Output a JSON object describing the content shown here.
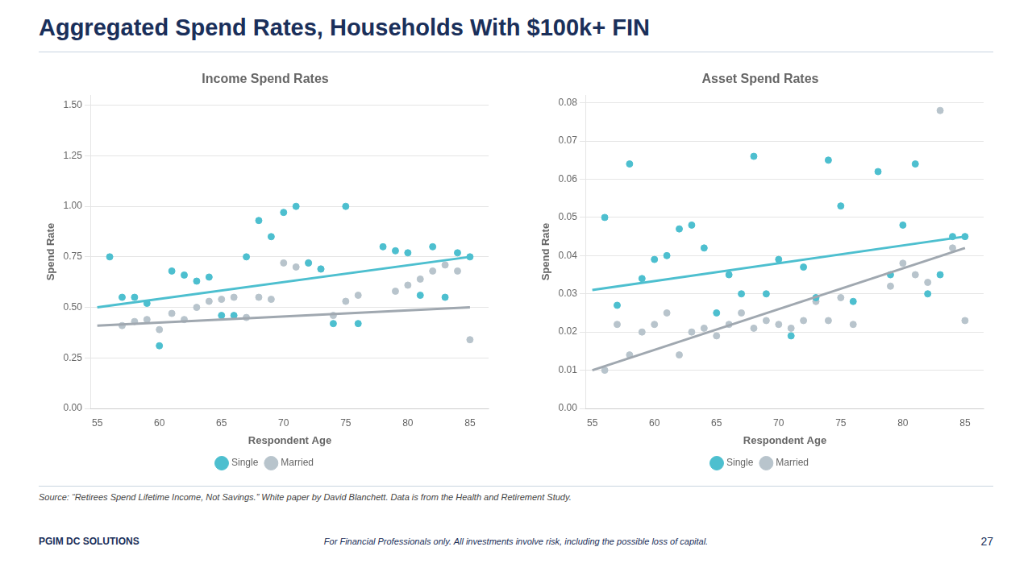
{
  "title": "Aggregated Spend Rates, Households With $100k+ FIN",
  "annotations": [
    "Source: “Retirees Spend Lifetime Income, Not Savings.” White paper by David Blanchett.  Data is from the Health and Retirement Study.",
    "PGIM DC SOLUTIONS",
    "For Financial Professionals only. All investments involve risk, including the possible loss of capital.",
    "27"
  ],
  "chart_data": [
    {
      "type": "scatter",
      "title": "Income Spend Rates",
      "xlabel": "Respondent Age",
      "ylabel": "Spend Rate",
      "xlim": [
        54.5,
        86.5
      ],
      "xticks": [
        55,
        60,
        65,
        70,
        75,
        80,
        85
      ],
      "ylim": [
        0.0,
        1.55
      ],
      "yticks": [
        {
          "value": 0.0,
          "label": "0.00"
        },
        0.25,
        {
          "value": 0.5,
          "label": "0.50"
        },
        {
          "value": 0.75,
          "label": "0.75"
        },
        {
          "value": 1.0,
          "label": "1.00"
        },
        1.25,
        {
          "value": 1.5,
          "label": "1.50"
        }
      ],
      "grid": "y",
      "legend": "bottom",
      "series": [
        {
          "name": "Single",
          "type": "scatter",
          "color": "#4dbfcf",
          "x": [
            56,
            57,
            58,
            59,
            60,
            61,
            62,
            63,
            64,
            65,
            66,
            67,
            68,
            69,
            70,
            71,
            72,
            73,
            74,
            75,
            76,
            78,
            79,
            80,
            81,
            82,
            83,
            84,
            85
          ],
          "values": [
            0.75,
            0.55,
            0.55,
            0.52,
            0.31,
            0.68,
            0.66,
            0.63,
            0.65,
            0.46,
            0.46,
            0.75,
            0.93,
            0.85,
            0.97,
            1.0,
            0.72,
            0.69,
            0.42,
            1.0,
            0.42,
            0.8,
            0.78,
            0.77,
            0.56,
            0.8,
            0.55,
            0.77,
            0.75
          ]
        },
        {
          "name": "Married",
          "type": "scatter",
          "color": "#b8c4cc",
          "x": [
            57,
            58,
            59,
            60,
            61,
            62,
            63,
            64,
            65,
            66,
            67,
            68,
            69,
            70,
            71,
            72,
            73,
            74,
            75,
            76,
            79,
            80,
            81,
            82,
            83,
            84,
            85
          ],
          "values": [
            0.41,
            0.43,
            0.44,
            0.39,
            0.47,
            0.44,
            0.5,
            0.53,
            0.54,
            0.55,
            0.45,
            0.55,
            0.54,
            0.72,
            0.7,
            0.72,
            0.69,
            0.46,
            0.53,
            0.56,
            0.58,
            0.61,
            0.64,
            0.68,
            0.71,
            0.68,
            0.34
          ]
        },
        {
          "type": "line",
          "color": "#4dbfcf",
          "x": [
            55,
            85
          ],
          "values": [
            0.5,
            0.75
          ]
        },
        {
          "type": "line",
          "color": "#a0a8b0",
          "x": [
            55,
            85
          ],
          "values": [
            0.41,
            0.5
          ]
        }
      ]
    },
    {
      "type": "scatter",
      "title": "Asset Spend Rates",
      "xlabel": "Respondent Age",
      "ylabel": "Spend Rate",
      "xlim": [
        54.5,
        86.5
      ],
      "xticks": [
        55,
        60,
        65,
        70,
        75,
        80,
        85
      ],
      "ylim": [
        0.0,
        0.082
      ],
      "yticks": [
        {
          "value": 0.0,
          "label": "0.00"
        },
        0.01,
        0.02,
        0.03,
        0.04,
        0.05,
        0.06,
        0.07,
        0.08
      ],
      "grid": "y",
      "legend": "bottom",
      "series": [
        {
          "name": "Single",
          "type": "scatter",
          "color": "#4dbfcf",
          "x": [
            56,
            57,
            58,
            59,
            60,
            61,
            62,
            63,
            64,
            65,
            66,
            67,
            68,
            69,
            70,
            71,
            72,
            73,
            74,
            75,
            76,
            78,
            79,
            80,
            81,
            82,
            83,
            84,
            85
          ],
          "values": [
            0.05,
            0.027,
            0.064,
            0.034,
            0.039,
            0.04,
            0.047,
            0.048,
            0.042,
            0.025,
            0.035,
            0.03,
            0.066,
            0.03,
            0.039,
            0.019,
            0.037,
            0.029,
            0.065,
            0.053,
            0.028,
            0.062,
            0.035,
            0.048,
            0.064,
            0.03,
            0.035,
            0.045,
            0.045
          ]
        },
        {
          "name": "Married",
          "type": "scatter",
          "color": "#b8c4cc",
          "x": [
            56,
            57,
            58,
            59,
            60,
            61,
            62,
            63,
            64,
            65,
            66,
            67,
            68,
            69,
            70,
            71,
            72,
            73,
            74,
            75,
            76,
            79,
            80,
            81,
            82,
            83,
            84,
            85
          ],
          "values": [
            0.01,
            0.022,
            0.014,
            0.02,
            0.022,
            0.025,
            0.014,
            0.02,
            0.021,
            0.019,
            0.022,
            0.025,
            0.021,
            0.023,
            0.022,
            0.021,
            0.023,
            0.028,
            0.023,
            0.029,
            0.022,
            0.032,
            0.038,
            0.035,
            0.033,
            0.078,
            0.042,
            0.023
          ]
        },
        {
          "type": "line",
          "color": "#4dbfcf",
          "x": [
            55,
            85
          ],
          "values": [
            0.031,
            0.045
          ]
        },
        {
          "type": "line",
          "color": "#a0a8b0",
          "x": [
            55,
            85
          ],
          "values": [
            0.01,
            0.042
          ]
        }
      ]
    }
  ]
}
